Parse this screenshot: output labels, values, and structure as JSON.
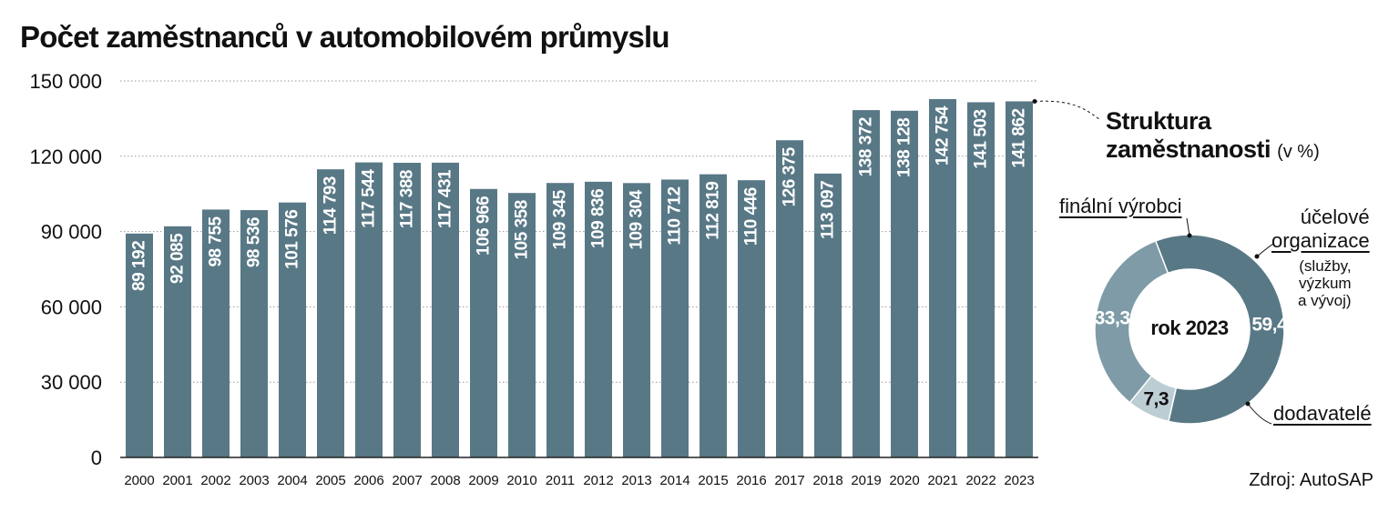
{
  "title": "Počet zaměstnanců v automobilovém průmyslu",
  "source": "Zdroj: AutoSAP",
  "colors": {
    "bar": "#587886",
    "donut_dark": "#587886",
    "donut_mid": "#7e9ba7",
    "donut_light": "#bccdd4",
    "grid": "#9a9a9a"
  },
  "chart_data": [
    {
      "type": "bar",
      "categories": [
        "2000",
        "2001",
        "2002",
        "2003",
        "2004",
        "2005",
        "2006",
        "2007",
        "2008",
        "2009",
        "2010",
        "2011",
        "2012",
        "2013",
        "2014",
        "2015",
        "2016",
        "2017",
        "2018",
        "2019",
        "2020",
        "2021",
        "2022",
        "2023"
      ],
      "values": [
        89192,
        92085,
        98755,
        98536,
        101576,
        114793,
        117544,
        117388,
        117431,
        106966,
        105358,
        109345,
        109836,
        109304,
        110712,
        112819,
        110446,
        126375,
        113097,
        138372,
        138128,
        142754,
        141503,
        141862
      ],
      "value_labels": [
        "89 192",
        "92 085",
        "98 755",
        "98 536",
        "101 576",
        "114 793",
        "117 544",
        "117 388",
        "117 431",
        "106 966",
        "105 358",
        "109 345",
        "109 836",
        "109 304",
        "110 712",
        "112 819",
        "110 446",
        "126 375",
        "113 097",
        "138 372",
        "138 128",
        "142 754",
        "141 503",
        "141 862"
      ],
      "yticks": [
        0,
        30000,
        60000,
        90000,
        120000,
        150000
      ],
      "ytick_labels": [
        "0",
        "30 000",
        "60 000",
        "90 000",
        "120 000",
        "150 000"
      ],
      "ylim": [
        0,
        150000
      ],
      "grid": true
    },
    {
      "type": "pie",
      "subtitle": "rok 2023",
      "title_line1": "Struktura",
      "title_line2": "zaměstnanosti",
      "title_unit": "(v %)",
      "slices": [
        {
          "label": "finální výrobci",
          "value": 59.4,
          "value_label": "59,4"
        },
        {
          "label": "účelové organizace",
          "value": 7.3,
          "value_label": "7,3"
        },
        {
          "label": "dodavatelé",
          "value": 33.3,
          "value_label": "33,3"
        }
      ],
      "org_label_line1": "účelové",
      "org_label_line2": "organizace",
      "org_note_line1": "(služby,",
      "org_note_line2": "výzkum",
      "org_note_line3": "a vývoj)"
    }
  ]
}
